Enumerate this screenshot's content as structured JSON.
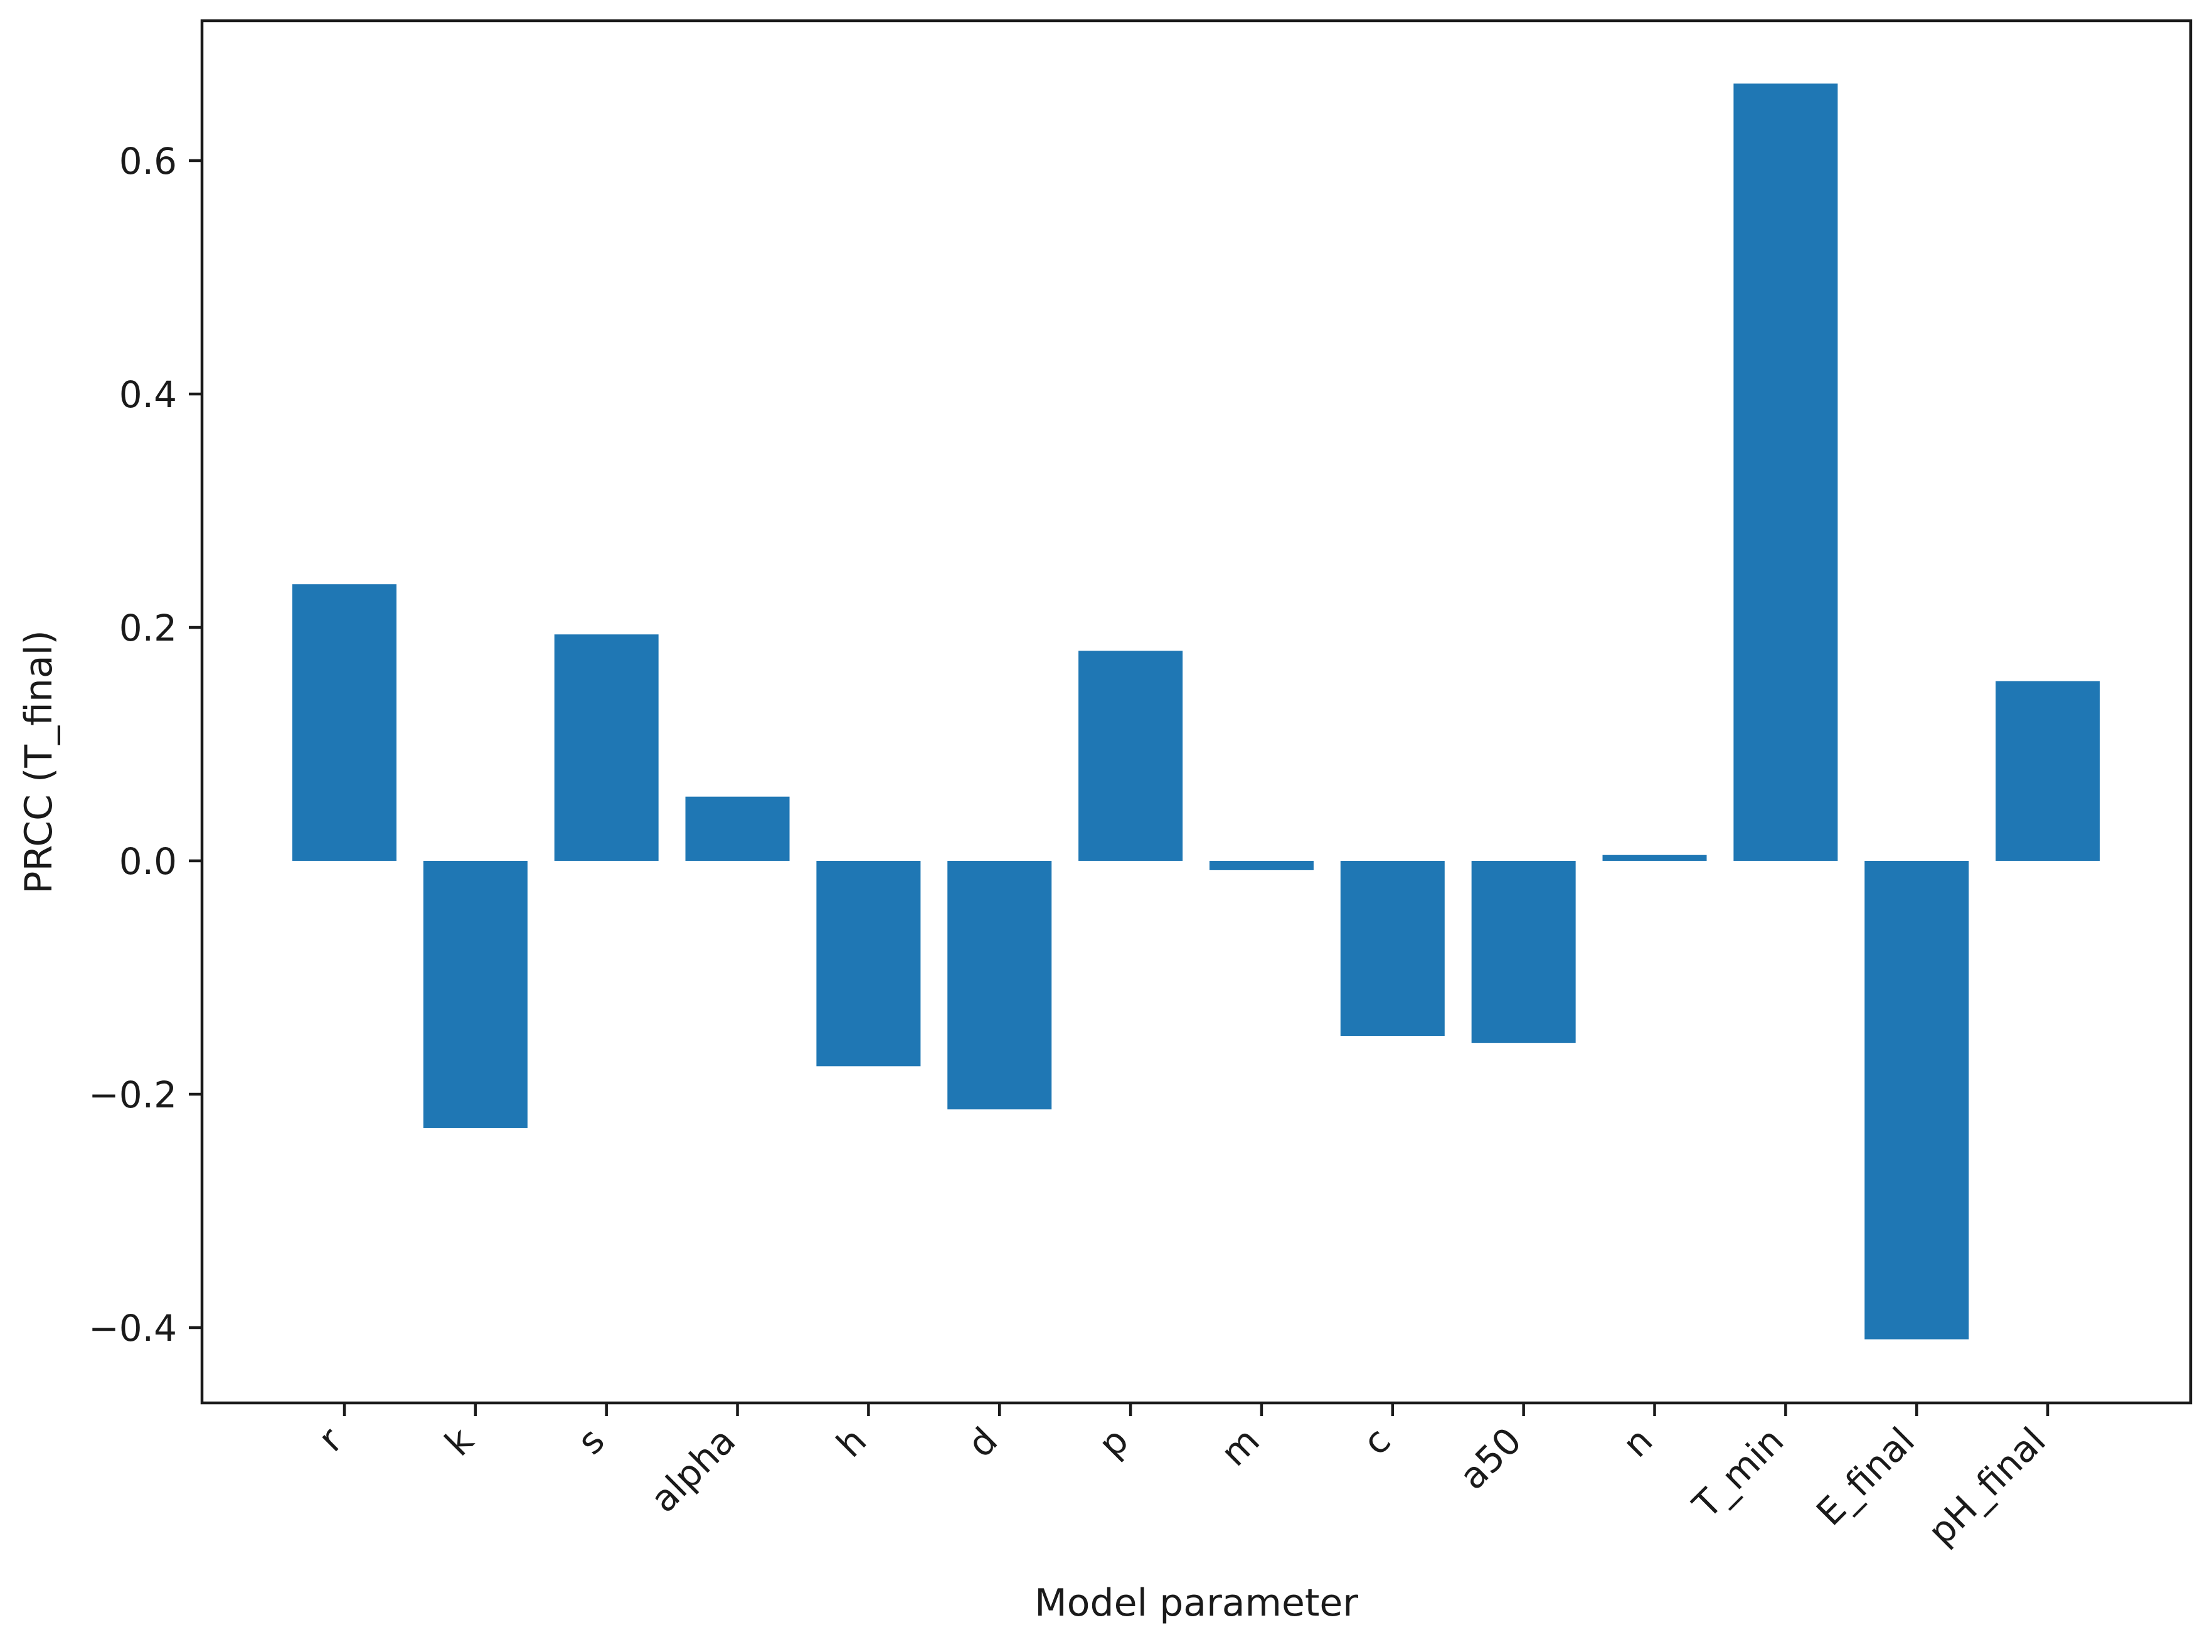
{
  "chart_data": {
    "type": "bar",
    "categories": [
      "r",
      "k",
      "s",
      "alpha",
      "h",
      "d",
      "p",
      "m",
      "c",
      "a50",
      "n",
      "T_min",
      "E_final",
      "pH_final"
    ],
    "values": [
      0.237,
      -0.229,
      0.194,
      0.055,
      -0.176,
      -0.213,
      0.18,
      -0.008,
      -0.15,
      -0.156,
      0.005,
      0.666,
      -0.41,
      0.154
    ],
    "xlabel": "Model parameter",
    "ylabel": "PRCC (T_final)",
    "ylim": [
      -0.463,
      0.722
    ],
    "yticks": [
      -0.4,
      -0.2,
      0.0,
      0.2,
      0.4,
      0.6
    ],
    "ytick_labels": [
      "−0.4",
      "−0.2",
      "0.0",
      "0.2",
      "0.4",
      "0.6"
    ],
    "bar_color": "#1f77b4",
    "grid": false,
    "legend": "none"
  }
}
